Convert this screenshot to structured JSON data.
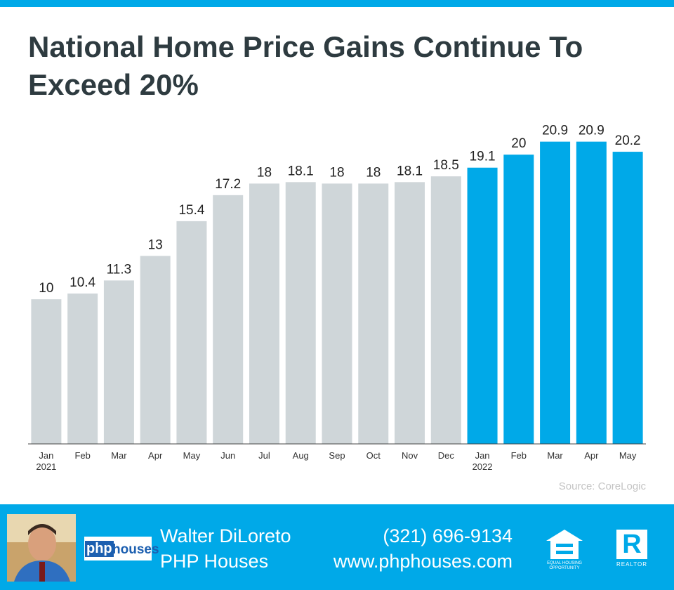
{
  "chart_data": {
    "type": "bar",
    "title": "National Home Price Gains Continue To Exceed 20%",
    "categories": [
      "Jan\n2021",
      "Feb",
      "Mar",
      "Apr",
      "May",
      "Jun",
      "Jul",
      "Aug",
      "Sep",
      "Oct",
      "Nov",
      "Dec",
      "Jan\n2022",
      "Feb",
      "Mar",
      "Apr",
      "May"
    ],
    "values": [
      10,
      10.4,
      11.3,
      13,
      15.4,
      17.2,
      18,
      18.1,
      18,
      18,
      18.1,
      18.5,
      19.1,
      20,
      20.9,
      20.9,
      20.2
    ],
    "colors": [
      "#cfd6d9",
      "#cfd6d9",
      "#cfd6d9",
      "#cfd6d9",
      "#cfd6d9",
      "#cfd6d9",
      "#cfd6d9",
      "#cfd6d9",
      "#cfd6d9",
      "#cfd6d9",
      "#cfd6d9",
      "#cfd6d9",
      "#00a9e8",
      "#00a9e8",
      "#00a9e8",
      "#00a9e8",
      "#00a9e8"
    ],
    "ylim": [
      0,
      22
    ],
    "source": "Source: CoreLogic"
  },
  "footer": {
    "name": "Walter DiLoreto",
    "company": "PHP Houses",
    "phone": "(321) 696-9134",
    "website": "www.phphouses.com",
    "logo": {
      "part1": "php",
      "part2": "houses"
    },
    "equal_housing": "EQUAL HOUSING OPPORTUNITY",
    "realtor": {
      "mark": "R",
      "text": "REALTOR"
    }
  }
}
